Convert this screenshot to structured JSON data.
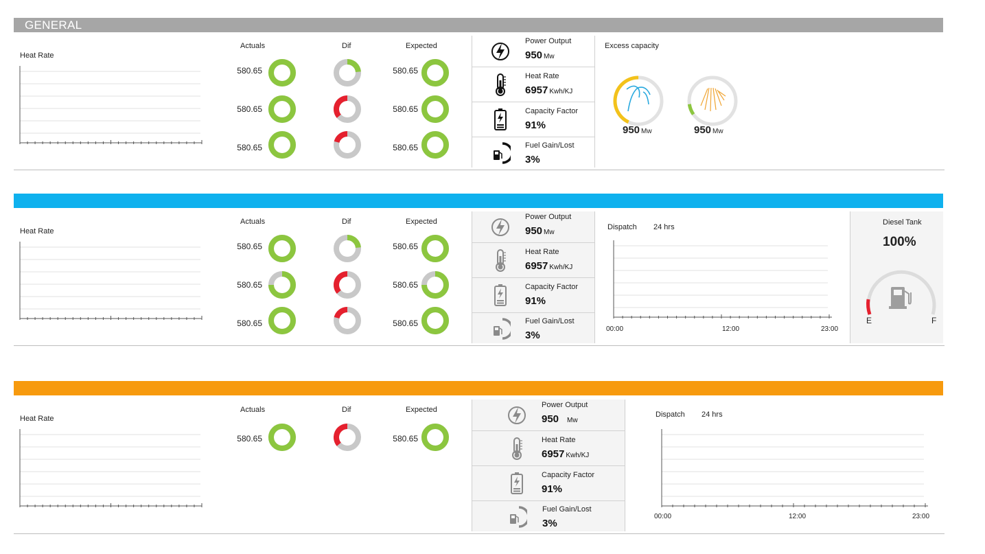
{
  "sections": [
    {
      "title": "GENERAL",
      "color": "#a6a6a6",
      "heat_rate_label": "Heat Rate",
      "col_headers": {
        "actuals": "Actuals",
        "dif": "Dif",
        "expected": "Expected"
      },
      "rows": [
        {
          "actual": "580.65",
          "expected": "580.65"
        },
        {
          "actual": "580.65",
          "expected": "580.65"
        },
        {
          "actual": "580.65",
          "expected": "580.65"
        }
      ],
      "metrics": {
        "power_output": {
          "label": "Power Output",
          "value": "950",
          "unit": "Mw"
        },
        "heat_rate": {
          "label": "Heat Rate",
          "value": "6957",
          "unit": "Kwh/KJ"
        },
        "capacity_factor": {
          "label": "Capacity Factor",
          "value": "91%"
        },
        "fuel_gain": {
          "label": "Fuel Gain/Lost",
          "value": "3%"
        }
      },
      "excess": {
        "label": "Excess capacity",
        "gauges": [
          {
            "value": "950",
            "unit": "Mw",
            "icon": "wind-icon",
            "color": "#f3c21b"
          },
          {
            "value": "950",
            "unit": "Mw",
            "icon": "solar-icon",
            "color": "#8cc63f"
          }
        ]
      }
    },
    {
      "title": "",
      "color": "#0fb1ee",
      "heat_rate_label": "Heat Rate",
      "col_headers": {
        "actuals": "Actuals",
        "dif": "Dif",
        "expected": "Expected"
      },
      "rows": [
        {
          "actual": "580.65",
          "expected": "580.65"
        },
        {
          "actual": "580.65",
          "expected": "580.65"
        },
        {
          "actual": "580.65",
          "expected": "580.65"
        }
      ],
      "metrics": {
        "power_output": {
          "label": "Power Output",
          "value": "950",
          "unit": "Mw"
        },
        "heat_rate": {
          "label": "Heat Rate",
          "value": "6957",
          "unit": "Kwh/KJ"
        },
        "capacity_factor": {
          "label": "Capacity Factor",
          "value": "91%"
        },
        "fuel_gain": {
          "label": "Fuel Gain/Lost",
          "value": "3%"
        }
      },
      "dispatch": {
        "label": "Dispatch",
        "period": "24 hrs",
        "ticks": [
          "00:00",
          "12:00",
          "23:00"
        ]
      },
      "diesel": {
        "label": "Diesel Tank",
        "value": "100%",
        "empty": "E",
        "full": "F",
        "icon": "fuel-pump-icon"
      }
    },
    {
      "title": "",
      "color": "#f79a0e",
      "heat_rate_label": "Heat Rate",
      "col_headers": {
        "actuals": "Actuals",
        "dif": "Dif",
        "expected": "Expected"
      },
      "rows": [
        {
          "actual": "580.65",
          "expected": "580.65"
        }
      ],
      "metrics": {
        "power_output": {
          "label": "Power Output",
          "value": "950",
          "unit": "Mw"
        },
        "heat_rate": {
          "label": "Heat Rate",
          "value": "6957",
          "unit": "Kwh/KJ"
        },
        "capacity_factor": {
          "label": "Capacity Factor",
          "value": "91%"
        },
        "fuel_gain": {
          "label": "Fuel Gain/Lost",
          "value": "3%"
        }
      },
      "dispatch": {
        "label": "Dispatch",
        "period": "24 hrs",
        "ticks": [
          "00:00",
          "12:00",
          "23:00"
        ]
      }
    }
  ],
  "colors": {
    "green": "#8cc63f",
    "red": "#e5202e",
    "gray": "#c8c8c8"
  }
}
